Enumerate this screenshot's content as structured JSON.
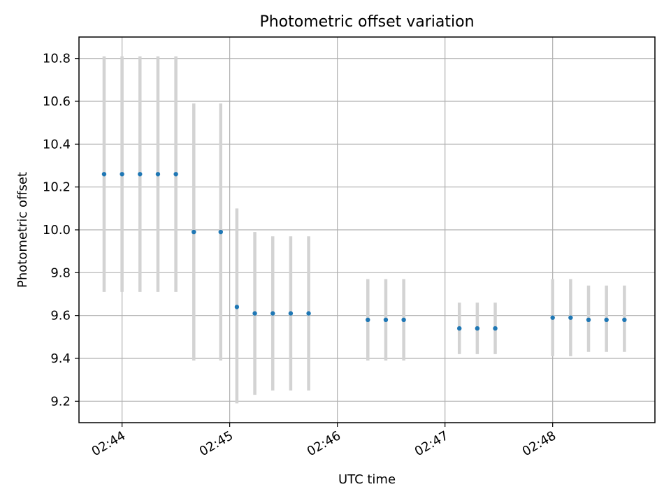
{
  "chart_data": {
    "type": "scatter",
    "title": "Photometric offset variation",
    "xlabel": "UTC time",
    "ylabel": "Photometric offset",
    "x_format": "HH:MM",
    "xlim": [
      "02:43:36",
      "02:48:57"
    ],
    "ylim": [
      9.1,
      10.9
    ],
    "grid": true,
    "x_ticks": [
      "02:44",
      "02:45",
      "02:46",
      "02:47",
      "02:48"
    ],
    "y_ticks": [
      9.2,
      9.4,
      9.6,
      9.8,
      10.0,
      10.2,
      10.4,
      10.6,
      10.8
    ],
    "colors": {
      "points": "#1f77b4",
      "errorbars": "#d3d3d3"
    },
    "series": [
      {
        "x": [
          "02:43:50",
          "02:44:00",
          "02:44:10",
          "02:44:20",
          "02:44:30",
          "02:44:40",
          "02:44:55",
          "02:45:04",
          "02:45:14",
          "02:45:24",
          "02:45:34",
          "02:45:44",
          "02:46:17",
          "02:46:27",
          "02:46:37",
          "02:47:08",
          "02:47:18",
          "02:47:28",
          "02:48:00",
          "02:48:10",
          "02:48:20",
          "02:48:30",
          "02:48:40"
        ],
        "y": [
          10.26,
          10.26,
          10.26,
          10.26,
          10.26,
          9.99,
          9.99,
          9.64,
          9.61,
          9.61,
          9.61,
          9.61,
          9.58,
          9.58,
          9.58,
          9.54,
          9.54,
          9.54,
          9.59,
          9.59,
          9.58,
          9.58,
          9.58
        ],
        "yerr_low": [
          9.71,
          9.71,
          9.71,
          9.71,
          9.71,
          9.39,
          9.39,
          9.19,
          9.23,
          9.25,
          9.25,
          9.25,
          9.39,
          9.39,
          9.39,
          9.42,
          9.42,
          9.42,
          9.41,
          9.41,
          9.43,
          9.43,
          9.43
        ],
        "yerr_high": [
          10.81,
          10.81,
          10.81,
          10.81,
          10.81,
          10.59,
          10.59,
          10.1,
          9.99,
          9.97,
          9.97,
          9.97,
          9.77,
          9.77,
          9.77,
          9.66,
          9.66,
          9.66,
          9.77,
          9.77,
          9.74,
          9.74,
          9.74
        ]
      }
    ]
  }
}
